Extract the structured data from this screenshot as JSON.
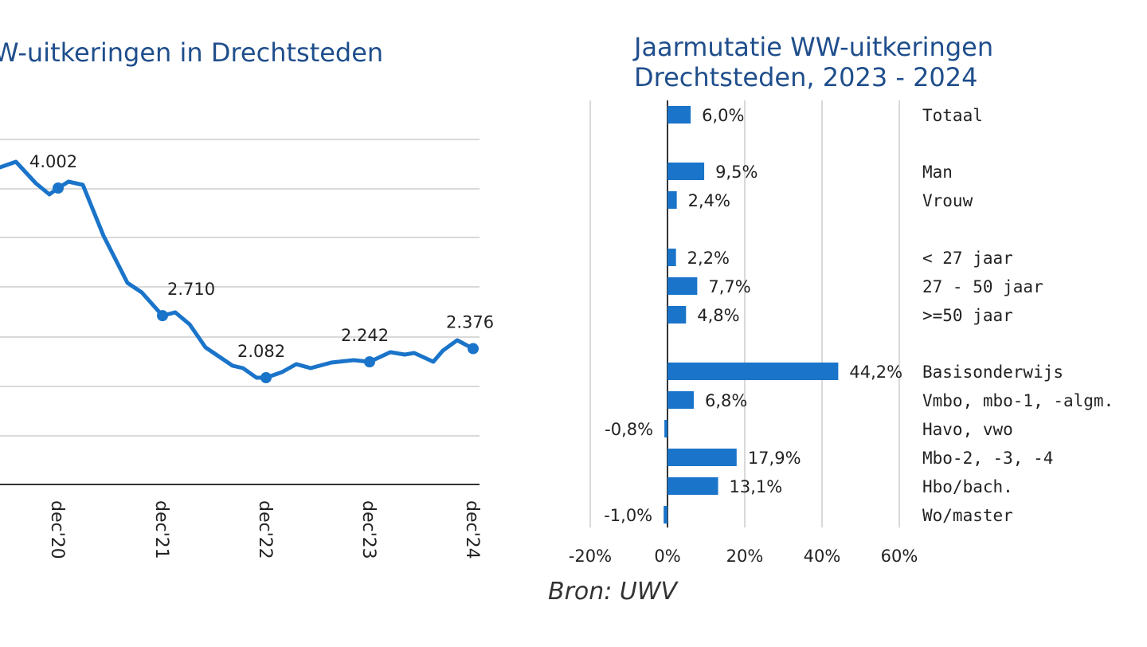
{
  "chart_data": [
    {
      "type": "line",
      "title": "W-uitkeringen in Drechtsteden",
      "color": "#1a74c9",
      "x": [
        "dec'20",
        "dec'21",
        "dec'22",
        "dec'23",
        "dec'24"
      ],
      "series": [
        {
          "values": [
            4002,
            2710,
            2082,
            2242,
            2376
          ]
        }
      ],
      "data_labels": [
        "4.002",
        "2.710",
        "2.082",
        "2.242",
        "2.376"
      ],
      "ylim": [
        1100,
        4700
      ],
      "grid": true
    },
    {
      "type": "bar",
      "orientation": "horizontal",
      "title": [
        "Jaarmutatie WW-uitkeringen",
        "Drechtsteden, 2023 - 2024"
      ],
      "color": "#1a74c9",
      "categories": [
        "Totaal",
        "Man",
        "Vrouw",
        "< 27 jaar",
        "27 - 50 jaar",
        ">=50 jaar",
        "Basisonderwijs",
        "Vmbo, mbo-1, -algm.",
        "Havo, vwo",
        "Mbo-2, -3, -4",
        "Hbo/bach.",
        "Wo/master"
      ],
      "values": [
        6.0,
        9.5,
        2.4,
        2.2,
        7.7,
        4.8,
        44.2,
        6.8,
        -0.8,
        17.9,
        13.1,
        -1.0
      ],
      "value_labels": [
        "6,0%",
        "9,5%",
        "2,4%",
        "2,2%",
        "7,7%",
        "4,8%",
        "44,2%",
        "6,8%",
        "-0,8%",
        "17,9%",
        "13,1%",
        "-1,0%"
      ],
      "xlim": [
        -20,
        60
      ],
      "xticks": [
        "-20%",
        "0%",
        "20%",
        "40%",
        "60%"
      ],
      "grid": true
    }
  ],
  "source": "Bron: UWV"
}
